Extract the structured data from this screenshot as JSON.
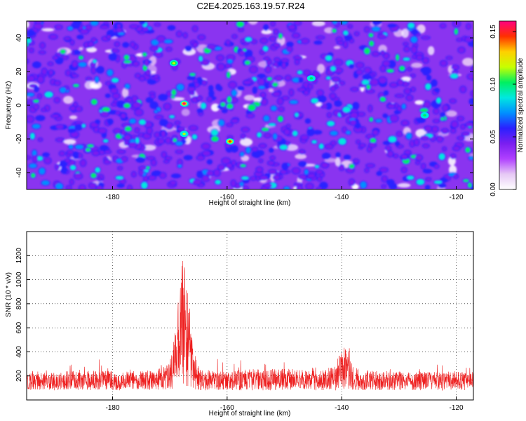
{
  "title": "C2E4.2025.163.19.57.R24",
  "chart_data": [
    {
      "type": "heatmap",
      "id": "spectrogram",
      "xlabel": "Height of straight line (km)",
      "ylabel": "Frequency (Hz)",
      "xlim": [
        -195,
        -117
      ],
      "ylim": [
        -50,
        50
      ],
      "xticks": [
        -180,
        -160,
        -140,
        -120
      ],
      "yticks": [
        -40,
        -20,
        0,
        20,
        40
      ],
      "colorbar": {
        "label": "Normalized spectral amplitude",
        "range": [
          0,
          0.16
        ],
        "ticks": [
          "0.00",
          "0.05",
          "0.10",
          "0.15"
        ],
        "colormap": [
          "#ffffff",
          "#e6c8f5",
          "#b040ff",
          "#7a1ff0",
          "#2a20ff",
          "#0090ff",
          "#00e8e0",
          "#00f060",
          "#c8ff00",
          "#ffd000",
          "#ff3000",
          "#ff0080"
        ]
      },
      "peaks": [
        {
          "x": -167.5,
          "y": 1,
          "amplitude": 0.16
        },
        {
          "x": -159.5,
          "y": -21.5,
          "amplitude": 0.15
        },
        {
          "x": -169.3,
          "y": 25,
          "amplitude": 0.12
        },
        {
          "x": -167.5,
          "y": -17,
          "amplitude": 0.11
        },
        {
          "x": -145.3,
          "y": 16,
          "amplitude": 0.1
        },
        {
          "x": -125.5,
          "y": -6,
          "amplitude": 0.1
        }
      ]
    },
    {
      "type": "line",
      "id": "snr",
      "xlabel": "Height of straight line (km)",
      "ylabel": "SNR (10 * v/v)",
      "xlim": [
        -195,
        -117
      ],
      "ylim": [
        0,
        1400
      ],
      "xticks": [
        -180,
        -160,
        -140,
        -120
      ],
      "yticks": [
        200,
        400,
        600,
        800,
        1000,
        1200
      ],
      "series": [
        {
          "name": "SNR",
          "color": "#ee2020",
          "baseline": 140,
          "x": [
            -195,
            -190,
            -185,
            -180,
            -175,
            -172,
            -170,
            -169,
            -168.5,
            -168,
            -167.5,
            -167,
            -166.5,
            -166,
            -165.5,
            -165,
            -164,
            -162,
            -160,
            -157,
            -153,
            -150,
            -146,
            -143,
            -141,
            -140,
            -139.5,
            -139,
            -138.5,
            -138,
            -136,
            -132,
            -128,
            -124,
            -120,
            -117
          ],
          "y": [
            150,
            150,
            160,
            155,
            155,
            170,
            200,
            550,
            750,
            980,
            1050,
            920,
            700,
            420,
            260,
            200,
            165,
            160,
            160,
            165,
            170,
            175,
            160,
            165,
            200,
            300,
            420,
            320,
            230,
            180,
            160,
            155,
            150,
            150,
            155,
            150
          ]
        }
      ]
    }
  ]
}
